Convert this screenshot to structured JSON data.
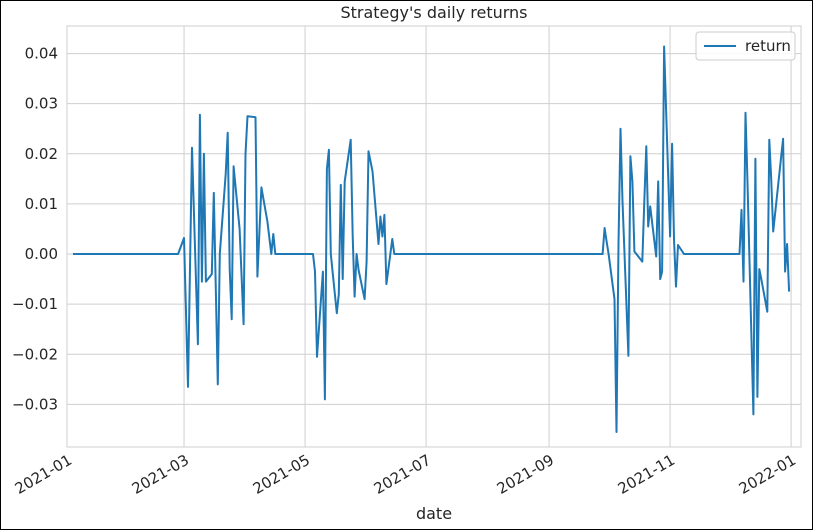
{
  "chart_data": {
    "type": "line",
    "title": "Strategy's daily returns",
    "xlabel": "date",
    "ylabel": "",
    "legend": {
      "entries": [
        "return"
      ],
      "placement": "top-right"
    },
    "colors": {
      "series": "#1f77b4",
      "grid": "#cfcfcf",
      "axes_frame": "#cfcfcf",
      "text": "#262626"
    },
    "grid": true,
    "x_range": [
      "2021-01-01",
      "2022-01-06"
    ],
    "ylim": [
      -0.0385,
      0.0455
    ],
    "y_ticks": [
      {
        "value": 0.04,
        "label": "0.04"
      },
      {
        "value": 0.03,
        "label": "0.03"
      },
      {
        "value": 0.02,
        "label": "0.02"
      },
      {
        "value": 0.01,
        "label": "0.01"
      },
      {
        "value": 0.0,
        "label": "0.00"
      },
      {
        "value": -0.01,
        "label": "−0.01"
      },
      {
        "value": -0.02,
        "label": "−0.02"
      },
      {
        "value": -0.03,
        "label": "−0.03"
      }
    ],
    "x_ticks": [
      {
        "date": "2021-01-01",
        "label": "2021-01"
      },
      {
        "date": "2021-03-01",
        "label": "2021-03"
      },
      {
        "date": "2021-05-01",
        "label": "2021-05"
      },
      {
        "date": "2021-07-01",
        "label": "2021-07"
      },
      {
        "date": "2021-09-01",
        "label": "2021-09"
      },
      {
        "date": "2021-11-01",
        "label": "2021-11"
      },
      {
        "date": "2022-01-01",
        "label": "2022-01"
      }
    ],
    "series": [
      {
        "name": "return",
        "points": [
          [
            "2021-01-04",
            0.0
          ],
          [
            "2021-02-26",
            0.0
          ],
          [
            "2021-03-01",
            0.0032
          ],
          [
            "2021-03-03",
            -0.0265
          ],
          [
            "2021-03-05",
            0.0212
          ],
          [
            "2021-03-08",
            -0.018
          ],
          [
            "2021-03-09",
            0.0278
          ],
          [
            "2021-03-10",
            -0.0055
          ],
          [
            "2021-03-11",
            0.02
          ],
          [
            "2021-03-12",
            -0.0055
          ],
          [
            "2021-03-15",
            -0.004
          ],
          [
            "2021-03-16",
            0.0122
          ],
          [
            "2021-03-18",
            -0.026
          ],
          [
            "2021-03-19",
            0.0
          ],
          [
            "2021-03-22",
            0.016
          ],
          [
            "2021-03-23",
            0.0242
          ],
          [
            "2021-03-24",
            -0.003
          ],
          [
            "2021-03-25",
            -0.013
          ],
          [
            "2021-03-26",
            0.0175
          ],
          [
            "2021-03-29",
            0.005
          ],
          [
            "2021-03-31",
            -0.014
          ],
          [
            "2021-04-01",
            0.02
          ],
          [
            "2021-04-02",
            0.0275
          ],
          [
            "2021-04-06",
            0.0273
          ],
          [
            "2021-04-07",
            -0.0045
          ],
          [
            "2021-04-09",
            0.0133
          ],
          [
            "2021-04-12",
            0.0065
          ],
          [
            "2021-04-14",
            0.0
          ],
          [
            "2021-04-15",
            0.004
          ],
          [
            "2021-04-16",
            0.0
          ],
          [
            "2021-05-05",
            0.0
          ],
          [
            "2021-05-06",
            -0.0035
          ],
          [
            "2021-05-07",
            -0.0205
          ],
          [
            "2021-05-10",
            -0.0035
          ],
          [
            "2021-05-11",
            -0.029
          ],
          [
            "2021-05-12",
            0.017
          ],
          [
            "2021-05-13",
            0.0208
          ],
          [
            "2021-05-14",
            0.0
          ],
          [
            "2021-05-17",
            -0.0118
          ],
          [
            "2021-05-18",
            -0.008
          ],
          [
            "2021-05-19",
            0.0138
          ],
          [
            "2021-05-20",
            -0.005
          ],
          [
            "2021-05-21",
            0.0145
          ],
          [
            "2021-05-24",
            0.0228
          ],
          [
            "2021-05-25",
            0.0035
          ],
          [
            "2021-05-26",
            -0.0085
          ],
          [
            "2021-05-27",
            0.0
          ],
          [
            "2021-05-28",
            -0.0032
          ],
          [
            "2021-05-31",
            -0.009
          ],
          [
            "2021-06-01",
            -0.0015
          ],
          [
            "2021-06-02",
            0.0205
          ],
          [
            "2021-06-04",
            0.0165
          ],
          [
            "2021-06-07",
            0.002
          ],
          [
            "2021-06-08",
            0.0075
          ],
          [
            "2021-06-09",
            0.0035
          ],
          [
            "2021-06-10",
            0.0078
          ],
          [
            "2021-06-11",
            -0.006
          ],
          [
            "2021-06-14",
            0.003
          ],
          [
            "2021-06-15",
            0.0
          ],
          [
            "2021-09-28",
            0.0
          ],
          [
            "2021-09-29",
            0.0052
          ],
          [
            "2021-09-30",
            0.0025
          ],
          [
            "2021-10-01",
            0.0
          ],
          [
            "2021-10-04",
            -0.009
          ],
          [
            "2021-10-05",
            -0.0355
          ],
          [
            "2021-10-06",
            0.002
          ],
          [
            "2021-10-07",
            0.025
          ],
          [
            "2021-10-08",
            0.0105
          ],
          [
            "2021-10-11",
            -0.0203
          ],
          [
            "2021-10-12",
            0.0195
          ],
          [
            "2021-10-13",
            0.0145
          ],
          [
            "2021-10-14",
            0.0005
          ],
          [
            "2021-10-18",
            -0.0015
          ],
          [
            "2021-10-19",
            0.0105
          ],
          [
            "2021-10-20",
            0.0215
          ],
          [
            "2021-10-21",
            0.0055
          ],
          [
            "2021-10-22",
            0.0095
          ],
          [
            "2021-10-25",
            -0.0005
          ],
          [
            "2021-10-26",
            0.0145
          ],
          [
            "2021-10-27",
            -0.005
          ],
          [
            "2021-10-28",
            -0.0035
          ],
          [
            "2021-10-29",
            0.0414
          ],
          [
            "2021-11-01",
            0.0035
          ],
          [
            "2021-11-02",
            0.022
          ],
          [
            "2021-11-03",
            0.003
          ],
          [
            "2021-11-04",
            -0.0065
          ],
          [
            "2021-11-05",
            0.0018
          ],
          [
            "2021-11-08",
            0.0
          ],
          [
            "2021-12-06",
            0.0
          ],
          [
            "2021-12-07",
            0.0088
          ],
          [
            "2021-12-08",
            -0.0055
          ],
          [
            "2021-12-09",
            0.0282
          ],
          [
            "2021-12-10",
            0.015
          ],
          [
            "2021-12-13",
            -0.032
          ],
          [
            "2021-12-14",
            0.019
          ],
          [
            "2021-12-15",
            -0.0285
          ],
          [
            "2021-12-16",
            -0.003
          ],
          [
            "2021-12-17",
            -0.005
          ],
          [
            "2021-12-20",
            -0.0115
          ],
          [
            "2021-12-21",
            0.0228
          ],
          [
            "2021-12-22",
            0.015
          ],
          [
            "2021-12-23",
            0.0045
          ],
          [
            "2021-12-27",
            0.0195
          ],
          [
            "2021-12-28",
            0.023
          ],
          [
            "2021-12-29",
            -0.0035
          ],
          [
            "2021-12-30",
            0.002
          ],
          [
            "2021-12-31",
            -0.0075
          ]
        ]
      }
    ]
  }
}
